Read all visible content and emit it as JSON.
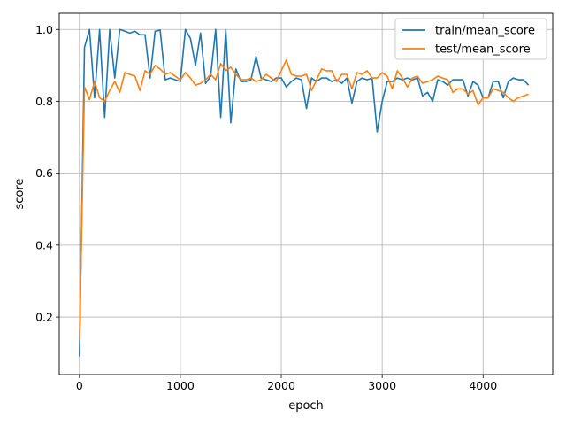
{
  "chart_data": {
    "type": "line",
    "title": "",
    "xlabel": "epoch",
    "ylabel": "score",
    "xlim": [
      -200,
      4690
    ],
    "ylim": [
      0.04,
      1.045
    ],
    "xticks": [
      0,
      1000,
      2000,
      3000,
      4000
    ],
    "yticks": [
      0.2,
      0.4,
      0.6,
      0.8,
      1.0
    ],
    "xtick_labels": [
      "0",
      "1000",
      "2000",
      "3000",
      "4000"
    ],
    "ytick_labels": [
      "0.2",
      "0.4",
      "0.6",
      "0.8",
      "1.0"
    ],
    "grid": true,
    "legend_position": "top-right",
    "series": [
      {
        "name": "train/mean_score",
        "color": "#1f77b4",
        "x": [
          0,
          50,
          100,
          150,
          200,
          250,
          300,
          350,
          400,
          450,
          500,
          550,
          600,
          650,
          700,
          750,
          800,
          850,
          900,
          950,
          1000,
          1050,
          1100,
          1150,
          1200,
          1250,
          1300,
          1350,
          1400,
          1450,
          1500,
          1550,
          1600,
          1650,
          1700,
          1750,
          1800,
          1850,
          1900,
          1950,
          2000,
          2050,
          2100,
          2150,
          2200,
          2250,
          2300,
          2350,
          2400,
          2450,
          2500,
          2550,
          2600,
          2650,
          2700,
          2750,
          2800,
          2850,
          2900,
          2950,
          3000,
          3050,
          3100,
          3150,
          3200,
          3250,
          3300,
          3350,
          3400,
          3450,
          3500,
          3550,
          3600,
          3650,
          3700,
          3750,
          3800,
          3850,
          3900,
          3950,
          4000,
          4050,
          4100,
          4150,
          4200,
          4250,
          4300,
          4350,
          4400,
          4450
        ],
        "y": [
          0.09,
          0.95,
          1.0,
          0.81,
          1.0,
          0.755,
          1.0,
          0.865,
          1.0,
          0.995,
          0.99,
          0.995,
          0.985,
          0.985,
          0.865,
          0.995,
          0.998,
          0.86,
          0.865,
          0.86,
          0.855,
          1.0,
          0.975,
          0.9,
          0.99,
          0.85,
          0.87,
          1.0,
          0.755,
          1.0,
          0.74,
          0.89,
          0.855,
          0.855,
          0.86,
          0.925,
          0.865,
          0.86,
          0.855,
          0.865,
          0.865,
          0.84,
          0.855,
          0.865,
          0.86,
          0.78,
          0.865,
          0.855,
          0.865,
          0.865,
          0.855,
          0.86,
          0.85,
          0.865,
          0.795,
          0.855,
          0.865,
          0.86,
          0.865,
          0.715,
          0.8,
          0.855,
          0.855,
          0.865,
          0.86,
          0.865,
          0.86,
          0.865,
          0.815,
          0.825,
          0.8,
          0.86,
          0.855,
          0.845,
          0.86,
          0.86,
          0.86,
          0.815,
          0.855,
          0.845,
          0.81,
          0.81,
          0.855,
          0.855,
          0.81,
          0.855,
          0.865,
          0.86,
          0.86,
          0.845
        ]
      },
      {
        "name": "test/mean_score",
        "color": "#ff7f0e",
        "x": [
          0,
          50,
          100,
          150,
          200,
          250,
          300,
          350,
          400,
          450,
          500,
          550,
          600,
          650,
          700,
          750,
          800,
          850,
          900,
          950,
          1000,
          1050,
          1100,
          1150,
          1200,
          1250,
          1300,
          1350,
          1400,
          1450,
          1500,
          1550,
          1600,
          1650,
          1700,
          1750,
          1800,
          1850,
          1900,
          1950,
          2000,
          2050,
          2100,
          2150,
          2200,
          2250,
          2300,
          2350,
          2400,
          2450,
          2500,
          2550,
          2600,
          2650,
          2700,
          2750,
          2800,
          2850,
          2900,
          2950,
          3000,
          3050,
          3100,
          3150,
          3200,
          3250,
          3300,
          3350,
          3400,
          3450,
          3500,
          3550,
          3600,
          3650,
          3700,
          3750,
          3800,
          3850,
          3900,
          3950,
          4000,
          4050,
          4100,
          4150,
          4200,
          4250,
          4300,
          4350,
          4400,
          4450
        ],
        "y": [
          0.135,
          0.84,
          0.805,
          0.855,
          0.81,
          0.8,
          0.83,
          0.855,
          0.825,
          0.88,
          0.875,
          0.87,
          0.83,
          0.885,
          0.875,
          0.9,
          0.89,
          0.875,
          0.88,
          0.87,
          0.86,
          0.88,
          0.865,
          0.845,
          0.85,
          0.86,
          0.875,
          0.86,
          0.905,
          0.885,
          0.895,
          0.875,
          0.86,
          0.86,
          0.865,
          0.855,
          0.86,
          0.875,
          0.865,
          0.855,
          0.885,
          0.915,
          0.875,
          0.87,
          0.87,
          0.875,
          0.83,
          0.86,
          0.89,
          0.885,
          0.885,
          0.855,
          0.875,
          0.875,
          0.835,
          0.88,
          0.875,
          0.885,
          0.865,
          0.865,
          0.88,
          0.87,
          0.835,
          0.885,
          0.865,
          0.84,
          0.865,
          0.87,
          0.85,
          0.855,
          0.86,
          0.87,
          0.865,
          0.86,
          0.825,
          0.835,
          0.835,
          0.82,
          0.83,
          0.79,
          0.81,
          0.81,
          0.835,
          0.83,
          0.825,
          0.81,
          0.8,
          0.81,
          0.815,
          0.82
        ]
      }
    ]
  }
}
